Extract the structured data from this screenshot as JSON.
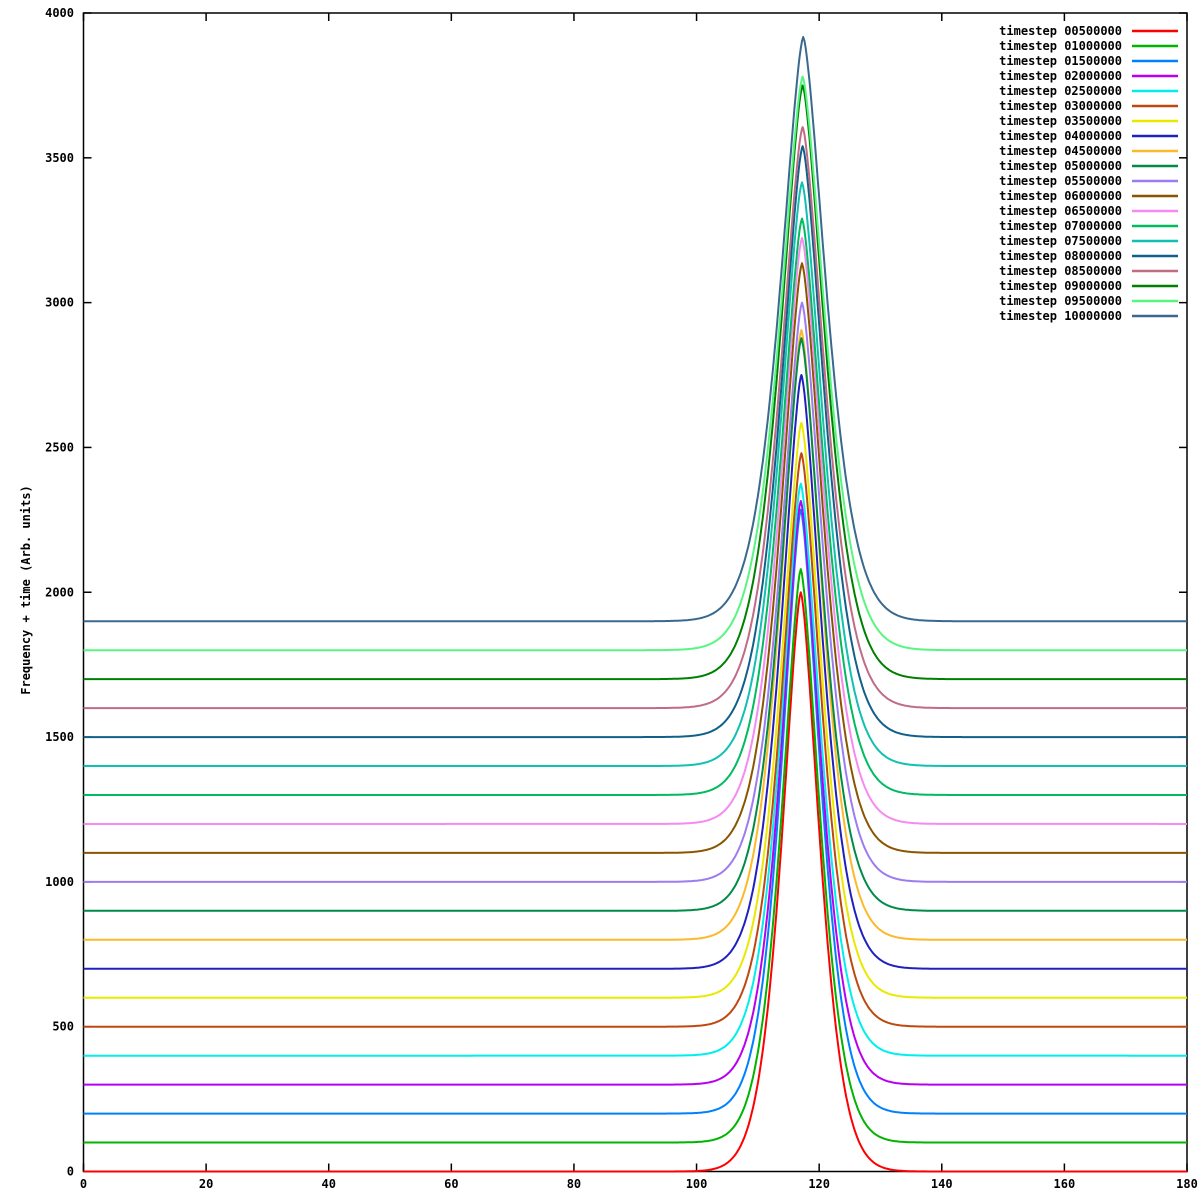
{
  "figure": {
    "background": "#ffffff",
    "border_color": "#000000",
    "text_color": "#000000"
  },
  "chart_data": {
    "type": "line",
    "title": "",
    "xlabel": "",
    "ylabel": "Frequency + time (Arb. units)",
    "xlim": [
      0,
      180
    ],
    "ylim": [
      0,
      4000
    ],
    "xticks": [
      0,
      20,
      40,
      60,
      80,
      100,
      120,
      140,
      160,
      180
    ],
    "yticks": [
      0,
      500,
      1000,
      1500,
      2000,
      2500,
      3000,
      3500,
      4000
    ],
    "grid": false,
    "legend_position": "top-right",
    "peak_model": "y(x) = baseline + (peak_y - baseline) * exp(-abs((x - peak_x)/sigma)^1.5); flat baseline with single peak",
    "series": [
      {
        "label": "timestep 00500000",
        "color": "#ff0000",
        "baseline": 0,
        "peak_x": 117.0,
        "peak_y": 2000,
        "sigma": 4.6
      },
      {
        "label": "timestep 01000000",
        "color": "#00b400",
        "baseline": 100,
        "peak_x": 117.0,
        "peak_y": 2080,
        "sigma": 4.65
      },
      {
        "label": "timestep 01500000",
        "color": "#0080ff",
        "baseline": 200,
        "peak_x": 117.0,
        "peak_y": 2285,
        "sigma": 4.7
      },
      {
        "label": "timestep 02000000",
        "color": "#b800f0",
        "baseline": 300,
        "peak_x": 117.0,
        "peak_y": 2315,
        "sigma": 4.75
      },
      {
        "label": "timestep 02500000",
        "color": "#00eeee",
        "baseline": 400,
        "peak_x": 117.0,
        "peak_y": 2375,
        "sigma": 4.8
      },
      {
        "label": "timestep 03000000",
        "color": "#bf4810",
        "baseline": 500,
        "peak_x": 117.1,
        "peak_y": 2480,
        "sigma": 4.85
      },
      {
        "label": "timestep 03500000",
        "color": "#e9e900",
        "baseline": 600,
        "peak_x": 117.1,
        "peak_y": 2585,
        "sigma": 4.9
      },
      {
        "label": "timestep 04000000",
        "color": "#2020c0",
        "baseline": 700,
        "peak_x": 117.1,
        "peak_y": 2750,
        "sigma": 4.95
      },
      {
        "label": "timestep 04500000",
        "color": "#fcb92c",
        "baseline": 800,
        "peak_x": 117.1,
        "peak_y": 2905,
        "sigma": 5.0
      },
      {
        "label": "timestep 05000000",
        "color": "#008c48",
        "baseline": 900,
        "peak_x": 117.1,
        "peak_y": 2877,
        "sigma": 5.05
      },
      {
        "label": "timestep 05500000",
        "color": "#9c7cf0",
        "baseline": 1000,
        "peak_x": 117.2,
        "peak_y": 3000,
        "sigma": 5.1
      },
      {
        "label": "timestep 06000000",
        "color": "#8a5500",
        "baseline": 1100,
        "peak_x": 117.2,
        "peak_y": 3136,
        "sigma": 5.15
      },
      {
        "label": "timestep 06500000",
        "color": "#f58af0",
        "baseline": 1200,
        "peak_x": 117.2,
        "peak_y": 3223,
        "sigma": 5.2
      },
      {
        "label": "timestep 07000000",
        "color": "#00bb60",
        "baseline": 1300,
        "peak_x": 117.2,
        "peak_y": 3290,
        "sigma": 5.25
      },
      {
        "label": "timestep 07500000",
        "color": "#10c0b0",
        "baseline": 1400,
        "peak_x": 117.2,
        "peak_y": 3415,
        "sigma": 5.3
      },
      {
        "label": "timestep 08000000",
        "color": "#10608a",
        "baseline": 1500,
        "peak_x": 117.3,
        "peak_y": 3540,
        "sigma": 5.35
      },
      {
        "label": "timestep 08500000",
        "color": "#c06c85",
        "baseline": 1600,
        "peak_x": 117.3,
        "peak_y": 3606,
        "sigma": 5.4
      },
      {
        "label": "timestep 09000000",
        "color": "#008000",
        "baseline": 1700,
        "peak_x": 117.3,
        "peak_y": 3750,
        "sigma": 5.45
      },
      {
        "label": "timestep 09500000",
        "color": "#58f580",
        "baseline": 1800,
        "peak_x": 117.3,
        "peak_y": 3780,
        "sigma": 5.5
      },
      {
        "label": "timestep 10000000",
        "color": "#3a698f",
        "baseline": 1900,
        "peak_x": 117.4,
        "peak_y": 3917,
        "sigma": 5.55
      }
    ]
  }
}
